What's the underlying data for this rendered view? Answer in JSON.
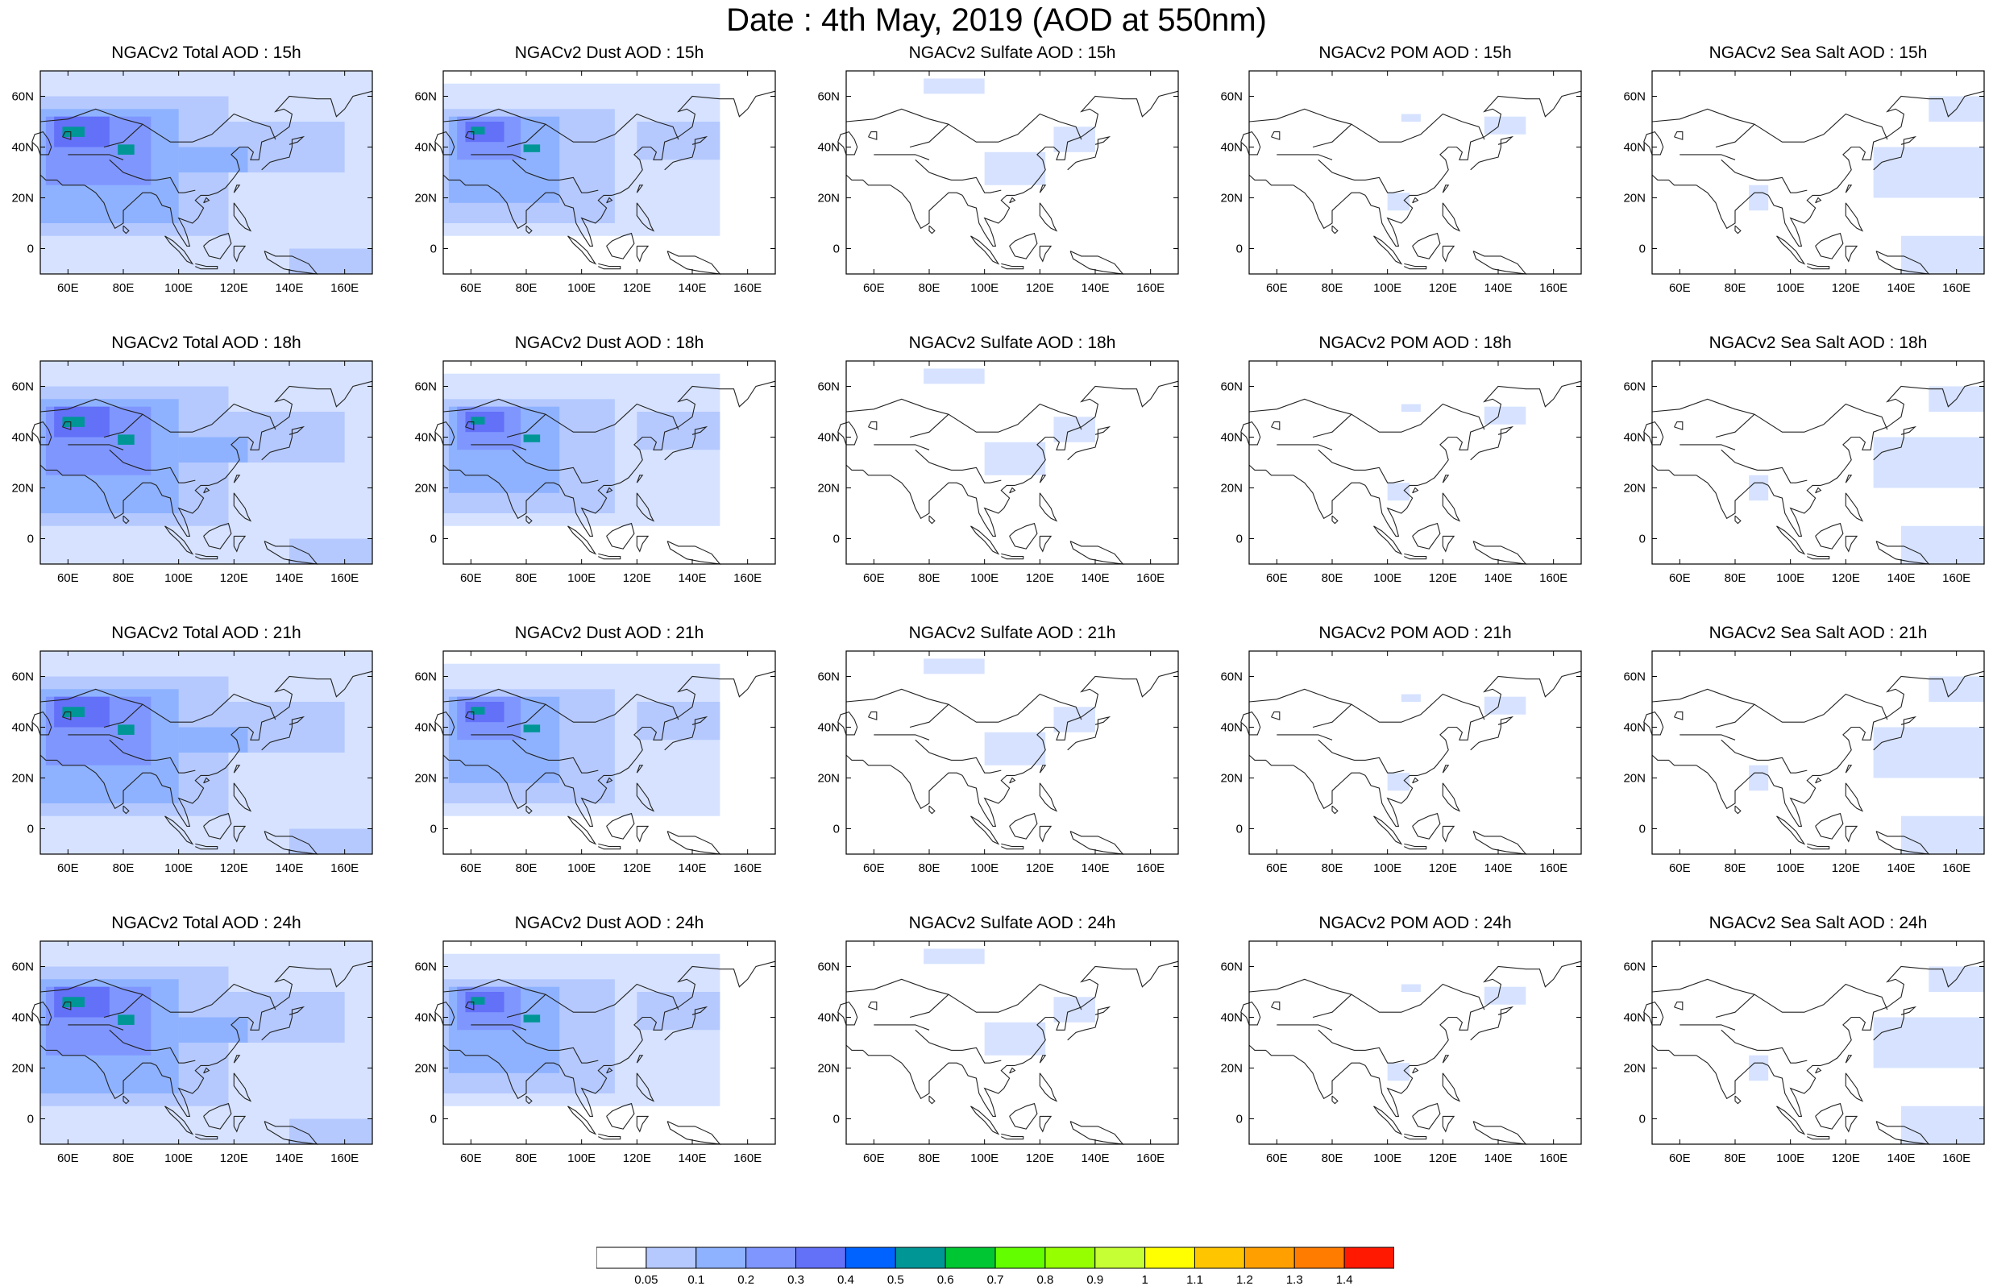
{
  "title": "Date : 4th May, 2019 (AOD at 550nm)",
  "colors": {
    "levels": [
      "#ffffff",
      "#d6e2ff",
      "#b5c9ff",
      "#8eb2ff",
      "#7f96ff",
      "#6370f8",
      "#0063ff",
      "#009696",
      "#00c633",
      "#63ff00",
      "#96ff00",
      "#c6ff33",
      "#ffff00",
      "#ffc600",
      "#ffa000",
      "#ff7c00",
      "#ff1900"
    ],
    "coast": "#222222"
  },
  "colorbar": {
    "labels": [
      "0.05",
      "0.1",
      "0.2",
      "0.3",
      "0.4",
      "0.5",
      "0.6",
      "0.7",
      "0.8",
      "0.9",
      "1",
      "1.1",
      "1.2",
      "1.3",
      "1.4"
    ]
  },
  "map": {
    "xticks": [
      "60E",
      "80E",
      "100E",
      "120E",
      "140E",
      "160E"
    ],
    "xtick_values": [
      60,
      80,
      100,
      120,
      140,
      160
    ],
    "yticks": [
      "60N",
      "40N",
      "20N",
      "0"
    ],
    "ytick_values": [
      60,
      40,
      20,
      0
    ],
    "lon_range": [
      50,
      170
    ],
    "lat_range": [
      -10,
      70
    ]
  },
  "panels": [
    [
      {
        "title": "NGACv2 Total AOD : 15h",
        "var": "total",
        "hour": 15
      },
      {
        "title": "NGACv2 Dust AOD : 15h",
        "var": "dust",
        "hour": 15
      },
      {
        "title": "NGACv2 Sulfate AOD : 15h",
        "var": "sulfate",
        "hour": 15
      },
      {
        "title": "NGACv2 POM AOD : 15h",
        "var": "pom",
        "hour": 15
      },
      {
        "title": "NGACv2 Sea Salt AOD : 15h",
        "var": "seasalt",
        "hour": 15
      }
    ],
    [
      {
        "title": "NGACv2 Total AOD : 18h",
        "var": "total",
        "hour": 18
      },
      {
        "title": "NGACv2 Dust AOD : 18h",
        "var": "dust",
        "hour": 18
      },
      {
        "title": "NGACv2 Sulfate AOD : 18h",
        "var": "sulfate",
        "hour": 18
      },
      {
        "title": "NGACv2 POM AOD : 18h",
        "var": "pom",
        "hour": 18
      },
      {
        "title": "NGACv2 Sea Salt AOD : 18h",
        "var": "seasalt",
        "hour": 18
      }
    ],
    [
      {
        "title": "NGACv2 Total AOD : 21h",
        "var": "total",
        "hour": 21
      },
      {
        "title": "NGACv2 Dust AOD : 21h",
        "var": "dust",
        "hour": 21
      },
      {
        "title": "NGACv2 Sulfate AOD : 21h",
        "var": "sulfate",
        "hour": 21
      },
      {
        "title": "NGACv2 POM AOD : 21h",
        "var": "pom",
        "hour": 21
      },
      {
        "title": "NGACv2 Sea Salt AOD : 21h",
        "var": "seasalt",
        "hour": 21
      }
    ],
    [
      {
        "title": "NGACv2 Total AOD : 24h",
        "var": "total",
        "hour": 24
      },
      {
        "title": "NGACv2 Dust AOD : 24h",
        "var": "dust",
        "hour": 24
      },
      {
        "title": "NGACv2 Sulfate AOD : 24h",
        "var": "sulfate",
        "hour": 24
      },
      {
        "title": "NGACv2 POM AOD : 24h",
        "var": "pom",
        "hour": 24
      },
      {
        "title": "NGACv2 Sea Salt  AOD : 24h",
        "var": "seasalt",
        "hour": 24
      }
    ]
  ],
  "fields": {
    "total": [
      {
        "lon": [
          50,
          170
        ],
        "lat": [
          -10,
          70
        ],
        "level": 1
      },
      {
        "lon": [
          50,
          118
        ],
        "lat": [
          5,
          60
        ],
        "level": 2
      },
      {
        "lon": [
          50,
          100
        ],
        "lat": [
          10,
          55
        ],
        "level": 3
      },
      {
        "lon": [
          52,
          90
        ],
        "lat": [
          25,
          52
        ],
        "level": 4
      },
      {
        "lon": [
          55,
          75
        ],
        "lat": [
          40,
          52
        ],
        "level": 5
      },
      {
        "lon": [
          58,
          66
        ],
        "lat": [
          44,
          48
        ],
        "level": 7
      },
      {
        "lon": [
          78,
          84
        ],
        "lat": [
          37,
          41
        ],
        "level": 7
      },
      {
        "lon": [
          110,
          160
        ],
        "lat": [
          30,
          50
        ],
        "level": 2
      },
      {
        "lon": [
          140,
          170
        ],
        "lat": [
          -10,
          0
        ],
        "level": 2
      },
      {
        "lon": [
          100,
          125
        ],
        "lat": [
          30,
          40
        ],
        "level": 3
      }
    ],
    "dust": [
      {
        "lon": [
          50,
          150
        ],
        "lat": [
          5,
          65
        ],
        "level": 1
      },
      {
        "lon": [
          50,
          112
        ],
        "lat": [
          10,
          55
        ],
        "level": 2
      },
      {
        "lon": [
          52,
          92
        ],
        "lat": [
          18,
          52
        ],
        "level": 3
      },
      {
        "lon": [
          55,
          78
        ],
        "lat": [
          35,
          52
        ],
        "level": 4
      },
      {
        "lon": [
          58,
          72
        ],
        "lat": [
          42,
          50
        ],
        "level": 5
      },
      {
        "lon": [
          60,
          65
        ],
        "lat": [
          45,
          48
        ],
        "level": 7
      },
      {
        "lon": [
          79,
          85
        ],
        "lat": [
          38,
          41
        ],
        "level": 7
      },
      {
        "lon": [
          120,
          150
        ],
        "lat": [
          35,
          50
        ],
        "level": 2
      }
    ],
    "sulfate": [
      {
        "lon": [
          100,
          122
        ],
        "lat": [
          25,
          38
        ],
        "level": 1
      },
      {
        "lon": [
          78,
          100
        ],
        "lat": [
          61,
          67
        ],
        "level": 1
      },
      {
        "lon": [
          125,
          140
        ],
        "lat": [
          38,
          48
        ],
        "level": 1
      }
    ],
    "pom": [
      {
        "lon": [
          100,
          108
        ],
        "lat": [
          15,
          22
        ],
        "level": 1
      },
      {
        "lon": [
          135,
          150
        ],
        "lat": [
          45,
          52
        ],
        "level": 1
      },
      {
        "lon": [
          105,
          112
        ],
        "lat": [
          50,
          53
        ],
        "level": 1
      }
    ],
    "seasalt": [
      {
        "lon": [
          140,
          170
        ],
        "lat": [
          -10,
          5
        ],
        "level": 1
      },
      {
        "lon": [
          130,
          170
        ],
        "lat": [
          20,
          40
        ],
        "level": 1
      },
      {
        "lon": [
          85,
          92
        ],
        "lat": [
          15,
          25
        ],
        "level": 1
      },
      {
        "lon": [
          150,
          170
        ],
        "lat": [
          50,
          60
        ],
        "level": 1
      }
    ]
  }
}
